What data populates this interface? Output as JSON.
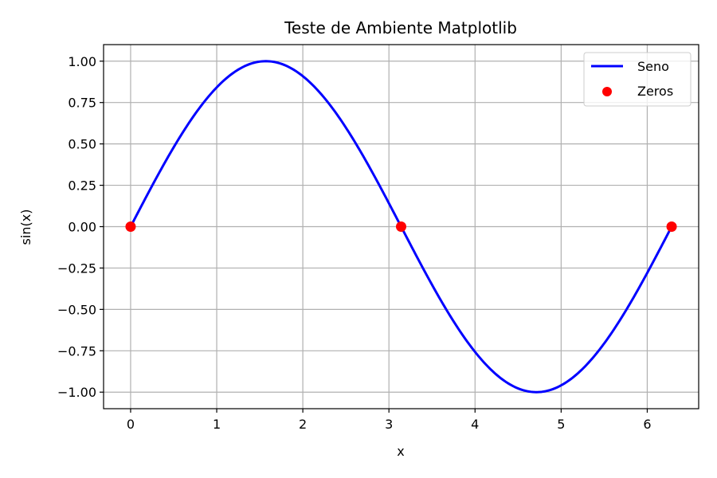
{
  "chart_data": {
    "type": "line",
    "title": "Teste de Ambiente Matplotlib",
    "xlabel": "x",
    "ylabel": "sin(x)",
    "xlim": [
      -0.31416,
      6.59734
    ],
    "ylim": [
      -1.1,
      1.1
    ],
    "x_ticks": [
      0,
      1,
      2,
      3,
      4,
      5,
      6
    ],
    "x_tick_labels": [
      "0",
      "1",
      "2",
      "3",
      "4",
      "5",
      "6"
    ],
    "y_ticks": [
      1.0,
      0.75,
      0.5,
      0.25,
      0.0,
      -0.25,
      -0.5,
      -0.75,
      -1.0
    ],
    "y_tick_labels": [
      "1.00",
      "0.75",
      "0.50",
      "0.25",
      "0.00",
      "−0.25",
      "−0.50",
      "−0.75",
      "−1.00"
    ],
    "grid": true,
    "legend_position": "top-right",
    "series": [
      {
        "name": "Seno",
        "kind": "line",
        "color": "#0000ff",
        "x": [
          0.0,
          0.2618,
          0.5236,
          0.7854,
          1.0472,
          1.309,
          1.5708,
          1.8326,
          2.0944,
          2.3562,
          2.618,
          2.8798,
          3.1416,
          3.4034,
          3.6652,
          3.927,
          4.1888,
          4.4506,
          4.7124,
          4.9742,
          5.236,
          5.4978,
          5.7596,
          6.0214,
          6.2832
        ],
        "y": [
          0.0,
          0.2588,
          0.5,
          0.7071,
          0.866,
          0.9659,
          1.0,
          0.9659,
          0.866,
          0.7071,
          0.5,
          0.2588,
          0.0,
          -0.2588,
          -0.5,
          -0.7071,
          -0.866,
          -0.9659,
          -1.0,
          -0.9659,
          -0.866,
          -0.7071,
          -0.5,
          -0.2588,
          0.0
        ]
      },
      {
        "name": "Zeros",
        "kind": "scatter",
        "color": "#ff0000",
        "x": [
          0.0,
          3.1416,
          6.2832
        ],
        "y": [
          0.0,
          0.0,
          0.0
        ]
      }
    ]
  }
}
